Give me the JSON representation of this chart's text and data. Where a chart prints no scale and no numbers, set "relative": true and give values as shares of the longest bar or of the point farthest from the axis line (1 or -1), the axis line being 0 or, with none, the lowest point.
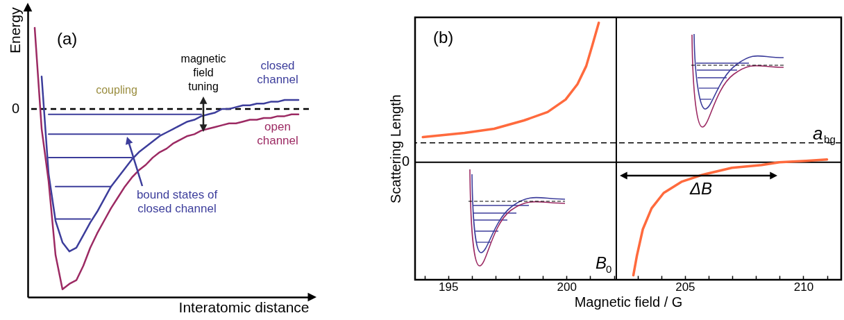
{
  "chart_data": [
    {
      "type": "line",
      "title": "(a)",
      "xlabel": "Interatomic distance",
      "ylabel": "Energy",
      "relative": true,
      "categories": [
        null,
        null,
        null,
        null,
        null,
        null,
        null,
        null,
        null,
        null,
        null,
        null,
        null,
        null,
        null,
        null,
        null,
        null,
        null,
        null,
        null,
        null,
        null,
        null,
        null,
        null,
        null,
        null,
        null,
        null,
        null,
        null,
        null,
        null,
        null,
        null,
        null,
        null,
        null
      ],
      "series": [
        {
          "name": "closed channel",
          "color": "#3c3d9b",
          "values": [
            null,
            0.18,
            -0.36,
            -0.62,
            -0.74,
            -0.79,
            -0.77,
            -0.7,
            -0.63,
            -0.57,
            -0.5,
            -0.43,
            -0.38,
            -0.33,
            -0.28,
            -0.24,
            -0.21,
            -0.18,
            -0.15,
            -0.13,
            -0.11,
            -0.09,
            -0.07,
            -0.06,
            -0.04,
            -0.03,
            -0.02,
            0.0,
            0.0,
            0.01,
            0.02,
            0.02,
            0.03,
            0.03,
            0.04,
            0.04,
            0.05,
            0.05,
            0.05
          ]
        },
        {
          "name": "open channel",
          "color": "#9c2a63",
          "values": [
            0.45,
            -0.11,
            -0.4,
            -0.81,
            -1,
            -0.97,
            -0.95,
            -0.87,
            -0.77,
            -0.69,
            -0.62,
            -0.55,
            -0.49,
            -0.43,
            -0.38,
            -0.34,
            -0.31,
            -0.27,
            -0.24,
            -0.22,
            -0.19,
            -0.17,
            -0.15,
            -0.14,
            -0.12,
            -0.11,
            -0.1,
            -0.09,
            -0.08,
            -0.08,
            -0.07,
            -0.06,
            -0.06,
            -0.05,
            -0.05,
            -0.04,
            -0.04,
            -0.03,
            -0.03
          ]
        },
        {
          "color": "#3c3d9b",
          "values": [
            null,
            null,
            -0.03,
            -0.03,
            -0.03,
            -0.03,
            -0.03,
            -0.03,
            -0.03,
            -0.03,
            -0.03,
            -0.03,
            -0.03,
            -0.03,
            -0.03,
            -0.03,
            -0.03,
            -0.03,
            -0.03,
            -0.03,
            -0.03,
            -0.03,
            -0.03,
            -0.03,
            -0.03,
            null,
            null,
            null,
            null,
            null,
            null,
            null,
            null,
            null,
            null,
            null,
            null,
            null,
            null
          ]
        },
        {
          "color": "#3c3d9b",
          "values": [
            null,
            null,
            -0.14,
            -0.14,
            -0.14,
            -0.14,
            -0.14,
            -0.14,
            -0.14,
            -0.14,
            -0.14,
            -0.14,
            -0.14,
            -0.14,
            -0.14,
            -0.14,
            -0.14,
            -0.14,
            -0.14,
            null,
            null,
            null,
            null,
            null,
            null,
            null,
            null,
            null,
            null,
            null,
            null,
            null,
            null,
            null,
            null,
            null,
            null,
            null,
            null
          ]
        },
        {
          "color": "#3c3d9b",
          "values": [
            null,
            null,
            -0.27,
            -0.27,
            -0.27,
            -0.27,
            -0.27,
            -0.27,
            -0.27,
            -0.27,
            -0.27,
            -0.27,
            -0.27,
            -0.27,
            -0.27,
            null,
            null,
            null,
            null,
            null,
            null,
            null,
            null,
            null,
            null,
            null,
            null,
            null,
            null,
            null,
            null,
            null,
            null,
            null,
            null,
            null,
            null,
            null,
            null
          ]
        },
        {
          "color": "#3c3d9b",
          "values": [
            null,
            null,
            null,
            -0.43,
            -0.43,
            -0.43,
            -0.43,
            -0.43,
            -0.43,
            -0.43,
            -0.43,
            -0.43,
            null,
            null,
            null,
            null,
            null,
            null,
            null,
            null,
            null,
            null,
            null,
            null,
            null,
            null,
            null,
            null,
            null,
            null,
            null,
            null,
            null,
            null,
            null,
            null,
            null,
            null,
            null
          ]
        },
        {
          "color": "#3c3d9b",
          "values": [
            null,
            null,
            null,
            -0.61,
            -0.61,
            -0.61,
            -0.61,
            -0.61,
            -0.61,
            null,
            null,
            null,
            null,
            null,
            null,
            null,
            null,
            null,
            null,
            null,
            null,
            null,
            null,
            null,
            null,
            null,
            null,
            null,
            null,
            null,
            null,
            null,
            null,
            null,
            null,
            null,
            null,
            null,
            null
          ]
        }
      ],
      "ref_lines": [
        {
          "axis": "y",
          "value": 0,
          "label": "0",
          "line_style": "dashed",
          "color": "#000000"
        }
      ],
      "annotations": [
        "coupling",
        "magnetic field tuning",
        "bound states of closed channel"
      ]
    },
    {
      "type": "line",
      "title": "(b)",
      "xlabel": "Magnetic field / G",
      "ylabel": "Scattering Length",
      "relative": true,
      "xlim": [
        193.6,
        211.6
      ],
      "xticks": [
        {
          "value": 194,
          "label": null
        },
        195,
        {
          "value": 196,
          "label": null
        },
        {
          "value": 197,
          "label": null
        },
        {
          "value": 198,
          "label": null
        },
        {
          "value": 199,
          "label": null
        },
        200,
        {
          "value": 201,
          "label": null
        },
        {
          "value": 202,
          "label": null
        },
        {
          "value": 203,
          "label": null
        },
        {
          "value": 204,
          "label": null
        },
        205,
        {
          "value": 206,
          "label": null
        },
        {
          "value": 207,
          "label": null
        },
        {
          "value": 208,
          "label": null
        },
        {
          "value": 209,
          "label": null
        },
        210,
        {
          "value": 211,
          "label": null
        }
      ],
      "series": [
        {
          "color": "#ff6a3d",
          "x": [
            193.93,
            195.69,
            196.94,
            198.2,
            199.2,
            199.96,
            200.46,
            200.83,
            201.09,
            201.36
          ],
          "values": [
            0.18,
            0.21,
            0.24,
            0.3,
            0.36,
            0.45,
            0.56,
            0.69,
            0.84,
            1
          ]
        },
        {
          "color": "#ff6a3d",
          "x": [
            202.82,
            202.97,
            203.22,
            203.59,
            204.1,
            204.85,
            205.73,
            206.98,
            208.24,
            208.99,
            210.12,
            211.0
          ],
          "values": [
            -0.81,
            -0.67,
            -0.48,
            -0.33,
            -0.22,
            -0.14,
            -0.09,
            -0.04,
            -0.02,
            0,
            0.01,
            0.02
          ]
        }
      ],
      "ref_lines": [
        {
          "axis": "y",
          "value": 0,
          "label": "0",
          "line_style": "solid",
          "color": "#000000"
        },
        {
          "axis": "y",
          "value": 0.14,
          "label": "a$_{bg}$",
          "line_style": "dashed",
          "color": "#000000"
        },
        {
          "axis": "x",
          "value": 202.1,
          "label": "B$_{0}$",
          "line_style": "solid",
          "color": "#000000"
        }
      ],
      "annotations": [
        "ΔB"
      ]
    }
  ]
}
